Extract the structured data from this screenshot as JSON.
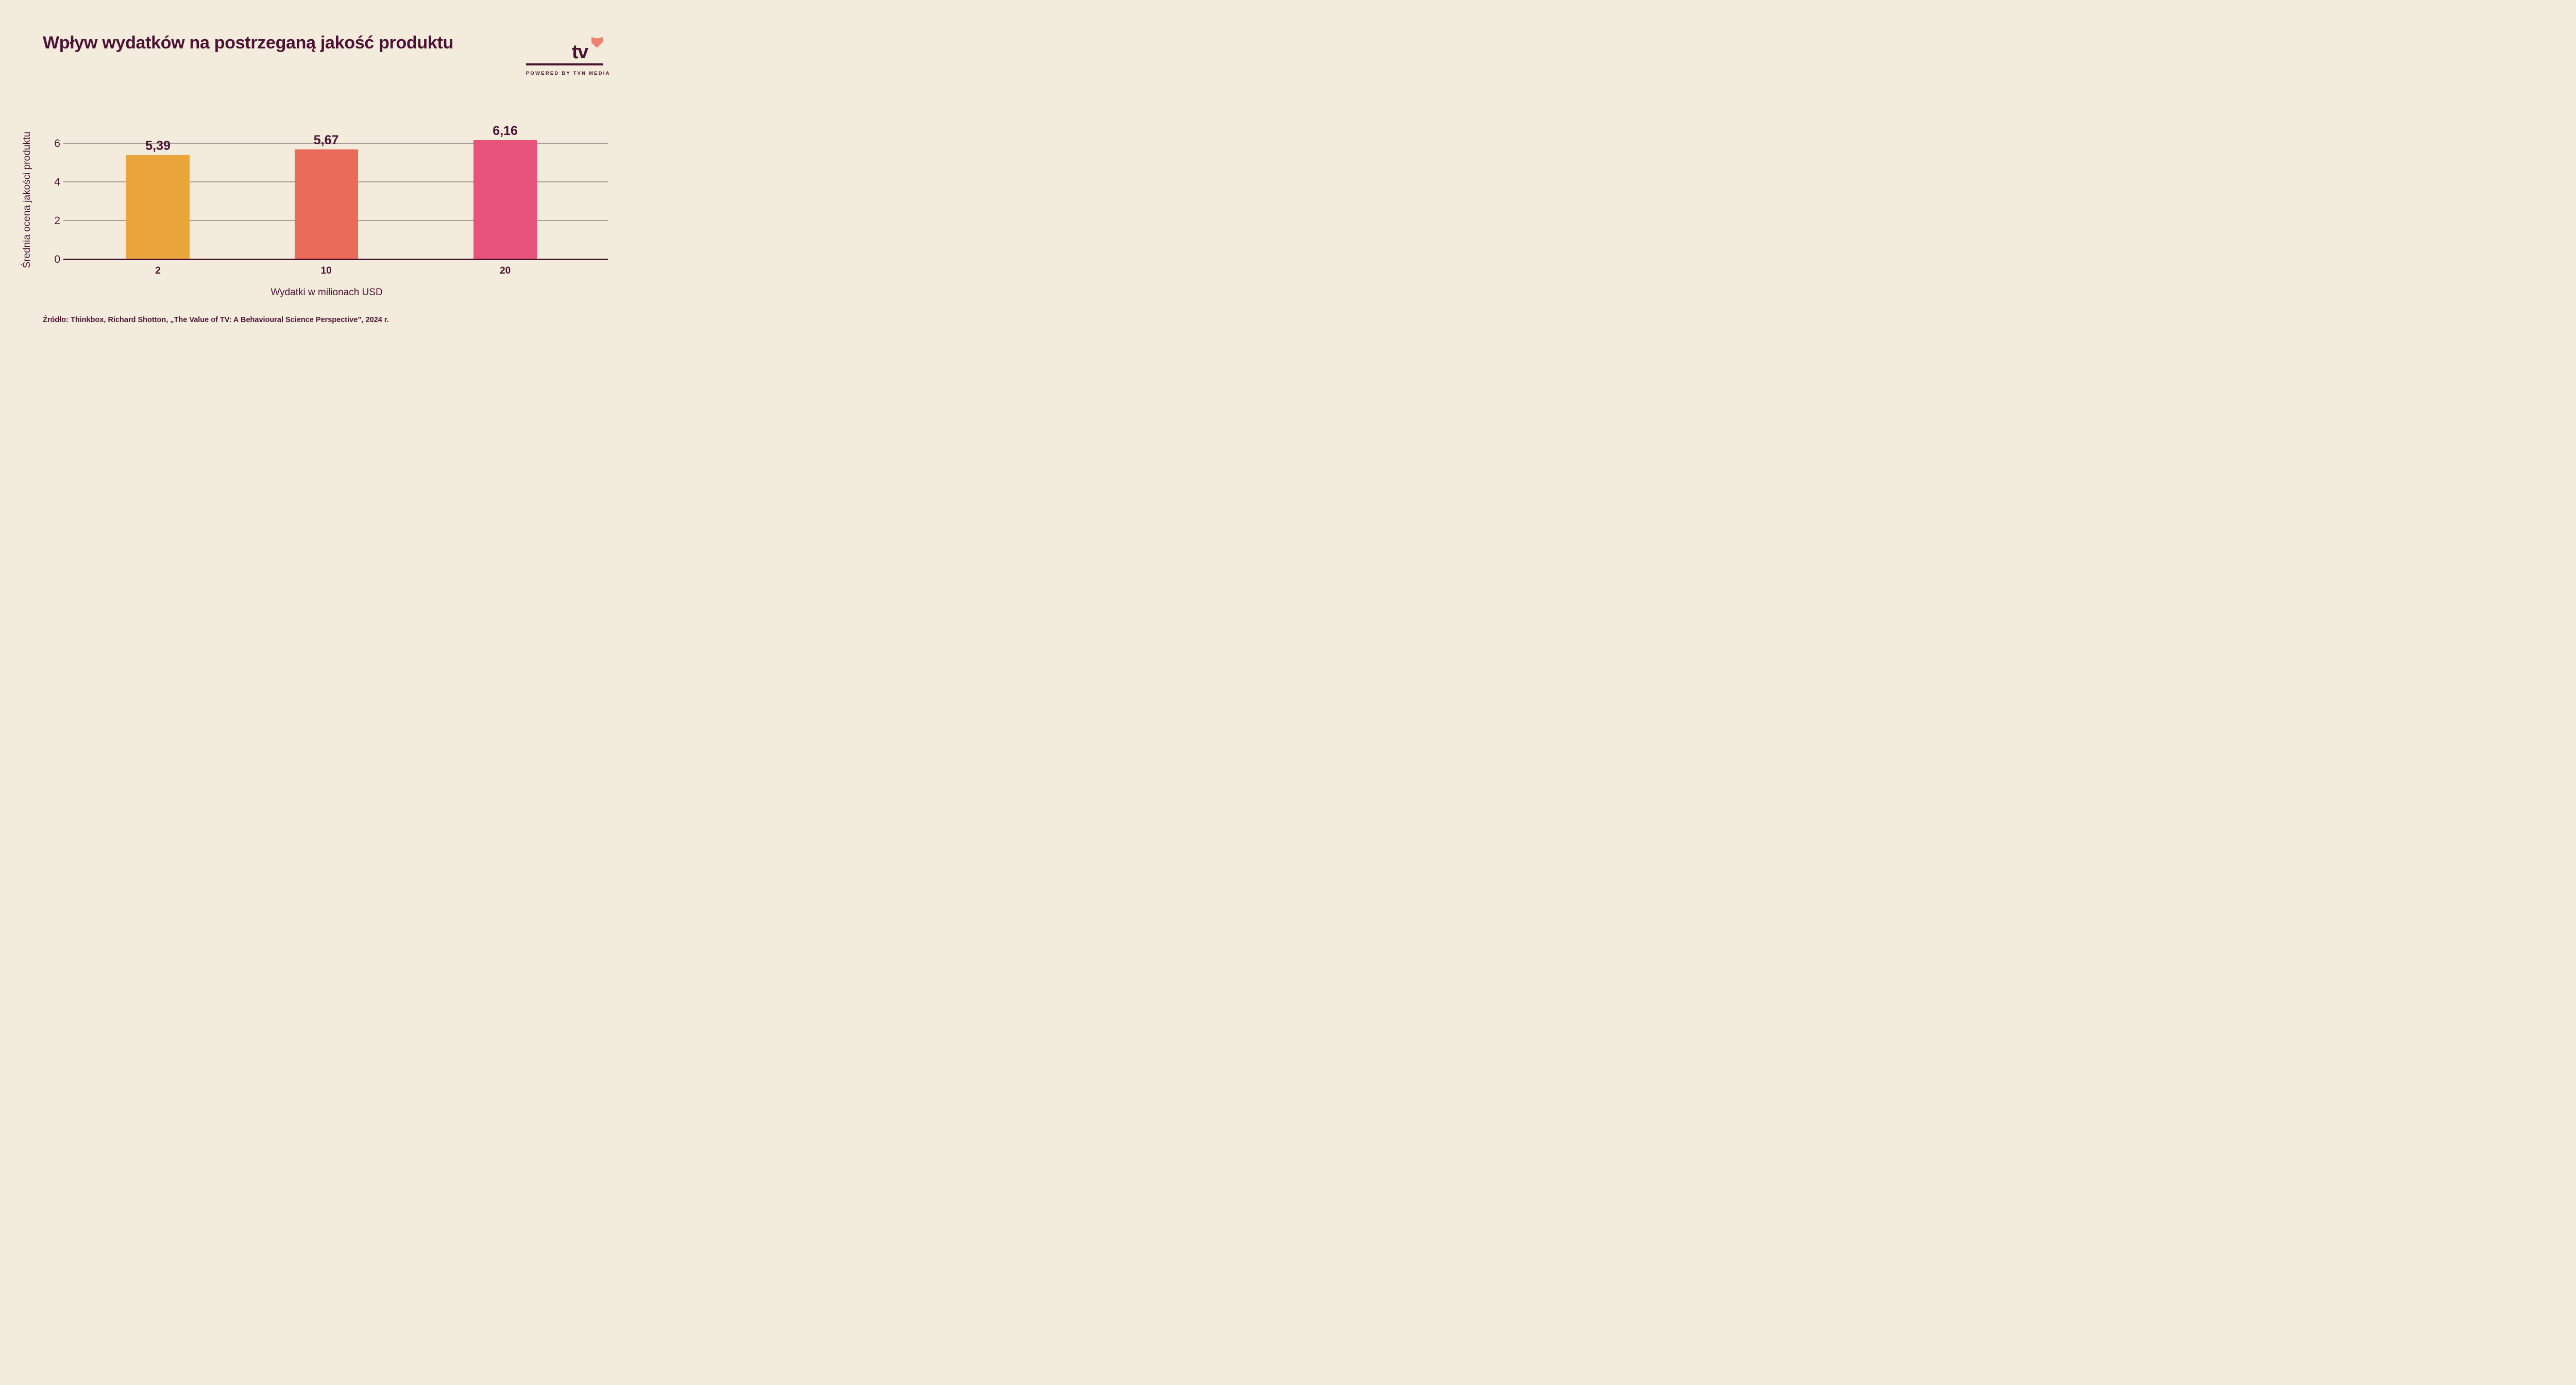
{
  "page": {
    "background_color": "#F3ECDD",
    "accent_color": "#4B1233"
  },
  "header": {
    "title": "Wpływ wydatków na postrzeganą jakość produktu"
  },
  "logo": {
    "brand": "tv",
    "heart_icon": "heart-icon",
    "heart_color": "#F0806F",
    "tagline": "POWERED BY TVN MEDIA"
  },
  "chart_data": {
    "type": "bar",
    "title": "Wpływ wydatków na postrzeganą jakość produktu",
    "categories": [
      "2",
      "10",
      "20"
    ],
    "values": [
      5.39,
      5.67,
      6.16
    ],
    "value_labels": [
      "5,39",
      "5,67",
      "6,16"
    ],
    "bar_colors": [
      "#EAA63B",
      "#EB6B5A",
      "#E7537A"
    ],
    "xlabel": "Wydatki w milionach USD",
    "ylabel": "Średnia ocena jakości produktu",
    "yticks": [
      0,
      2,
      4,
      6
    ],
    "ylim": [
      0,
      6.7
    ],
    "grid": true,
    "legend": false,
    "gridline_color": "#A6A096",
    "axis_color": "#4B1233"
  },
  "footer": {
    "source": "Źródło: Thinkbox, Richard Shotton, „The Value of TV: A Behavioural Science Perspective”, 2024 r."
  }
}
